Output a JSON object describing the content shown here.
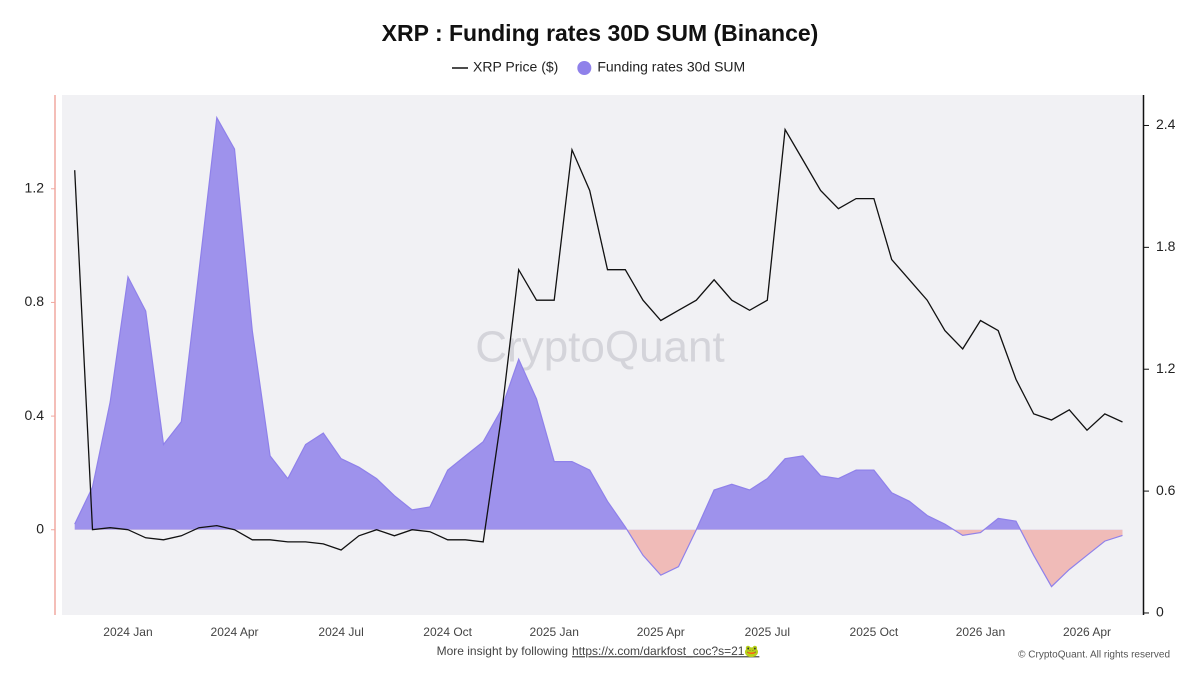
{
  "chart_data": {
    "type": "area",
    "title": "XRP : Funding rates 30D SUM (Binance)",
    "watermark": "CryptoQuant",
    "footer_note": "More insight by following",
    "footer_link": "https://x.com/darkfost_coc?s=21🐸",
    "copyright": "© CryptoQuant. All rights reserved",
    "categories": [
      null,
      null,
      null,
      "2024 Jan",
      null,
      null,
      null,
      null,
      null,
      "2024 Apr",
      null,
      null,
      null,
      null,
      null,
      "2024 Jul",
      null,
      null,
      null,
      null,
      null,
      "2024 Oct",
      null,
      null,
      null,
      null,
      null,
      "2025 Jan",
      null,
      null,
      null,
      null,
      null,
      "2025 Apr",
      null,
      null,
      null,
      null,
      null,
      "2025 Jul",
      null,
      null,
      null,
      null,
      null,
      "2025 Oct",
      null,
      null,
      null,
      null,
      null,
      "2026 Jan",
      null,
      null,
      null,
      null,
      null,
      "2026 Apr",
      null,
      null
    ],
    "ylim": [
      -0.3,
      1.53
    ],
    "yticks": [
      0,
      0.4,
      0.8,
      1.2
    ],
    "y2lim": [
      -0.01,
      2.55
    ],
    "y2ticks": [
      0,
      0.6,
      1.2,
      1.8,
      2.4
    ],
    "grid": false,
    "series": [
      {
        "name": "XRP Price ($)",
        "type": "line",
        "axis": "y2",
        "color": "#111111",
        "values": [
          2.18,
          0.41,
          0.42,
          0.41,
          0.37,
          0.36,
          0.38,
          0.42,
          0.43,
          0.41,
          0.36,
          0.36,
          0.35,
          0.35,
          0.34,
          0.31,
          0.38,
          0.41,
          0.38,
          0.41,
          0.4,
          0.36,
          0.36,
          0.35,
          0.95,
          1.69,
          1.54,
          1.54,
          2.28,
          2.08,
          1.69,
          1.69,
          1.54,
          1.44,
          1.49,
          1.54,
          1.64,
          1.54,
          1.49,
          1.54,
          2.38,
          2.23,
          2.08,
          1.99,
          2.04,
          2.04,
          1.74,
          1.64,
          1.54,
          1.39,
          1.3,
          1.44,
          1.39,
          1.15,
          0.98,
          0.95,
          1.0,
          0.9,
          0.98,
          0.94
        ]
      },
      {
        "name": "Funding rates 30d SUM",
        "type": "area",
        "axis": "y",
        "color": "#8f81ea",
        "negative_color": "#f0b5b1",
        "values": [
          0.02,
          0.15,
          0.45,
          0.89,
          0.77,
          0.3,
          0.38,
          0.91,
          1.45,
          1.34,
          0.7,
          0.26,
          0.18,
          0.3,
          0.34,
          0.25,
          0.22,
          0.18,
          0.12,
          0.07,
          0.08,
          0.21,
          0.26,
          0.31,
          0.42,
          0.6,
          0.46,
          0.24,
          0.24,
          0.21,
          0.1,
          0.01,
          -0.09,
          -0.16,
          -0.13,
          0.0,
          0.14,
          0.16,
          0.14,
          0.18,
          0.25,
          0.26,
          0.19,
          0.18,
          0.21,
          0.21,
          0.13,
          0.1,
          0.05,
          0.02,
          -0.02,
          -0.01,
          0.04,
          0.03,
          -0.09,
          -0.2,
          -0.14,
          -0.09,
          -0.04,
          -0.02
        ]
      }
    ]
  }
}
